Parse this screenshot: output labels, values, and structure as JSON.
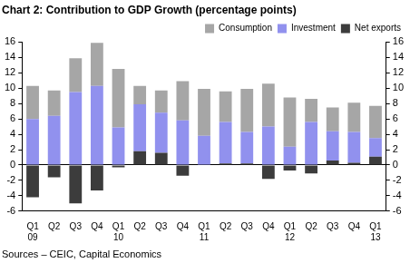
{
  "chart_data": {
    "type": "bar",
    "title": "Chart 2: Contribution to GDP Growth (percentage points)",
    "source": "Sources – CEIC, Capital Economics",
    "categories": [
      [
        "Q1",
        "09"
      ],
      "Q2",
      "Q3",
      "Q4",
      [
        "Q1",
        "10"
      ],
      "Q2",
      "Q3",
      "Q4",
      [
        "Q1",
        "11"
      ],
      "Q2",
      "Q3",
      "Q4",
      [
        "Q1",
        "12"
      ],
      "Q2",
      "Q3",
      "Q4",
      [
        "Q1",
        "13"
      ]
    ],
    "series": [
      {
        "name": "Consumption",
        "color": "#a6a6a6",
        "values": [
          4.3,
          3.3,
          4.4,
          5.6,
          7.6,
          2.4,
          2.9,
          5.1,
          6.1,
          4.0,
          5.6,
          5.6,
          6.4,
          3.0,
          3.1,
          3.8,
          4.2
        ]
      },
      {
        "name": "Investment",
        "color": "#9191ee",
        "values": [
          6.0,
          6.4,
          9.5,
          10.3,
          4.9,
          6.1,
          5.2,
          5.8,
          3.8,
          5.4,
          4.1,
          5.0,
          2.4,
          5.6,
          3.8,
          4.0,
          2.4
        ]
      },
      {
        "name": "Net exports",
        "color": "#3c3c3c",
        "values": [
          -4.2,
          -1.6,
          -5.0,
          -3.3,
          -0.3,
          1.8,
          1.6,
          -1.4,
          0,
          0.2,
          0.2,
          -1.8,
          -0.7,
          -1.1,
          0.6,
          0.3,
          1.1
        ]
      }
    ],
    "ylim": [
      -6,
      16
    ],
    "yticks": [
      -6,
      -4,
      -2,
      0,
      2,
      4,
      6,
      8,
      10,
      12,
      14,
      16
    ],
    "y2lim": [
      -6,
      16
    ],
    "y2ticks": [
      -6,
      -4,
      -2,
      0,
      2,
      4,
      6,
      8,
      10,
      12,
      14,
      16
    ],
    "stacked": true,
    "legend": "upper right",
    "grid": false
  }
}
